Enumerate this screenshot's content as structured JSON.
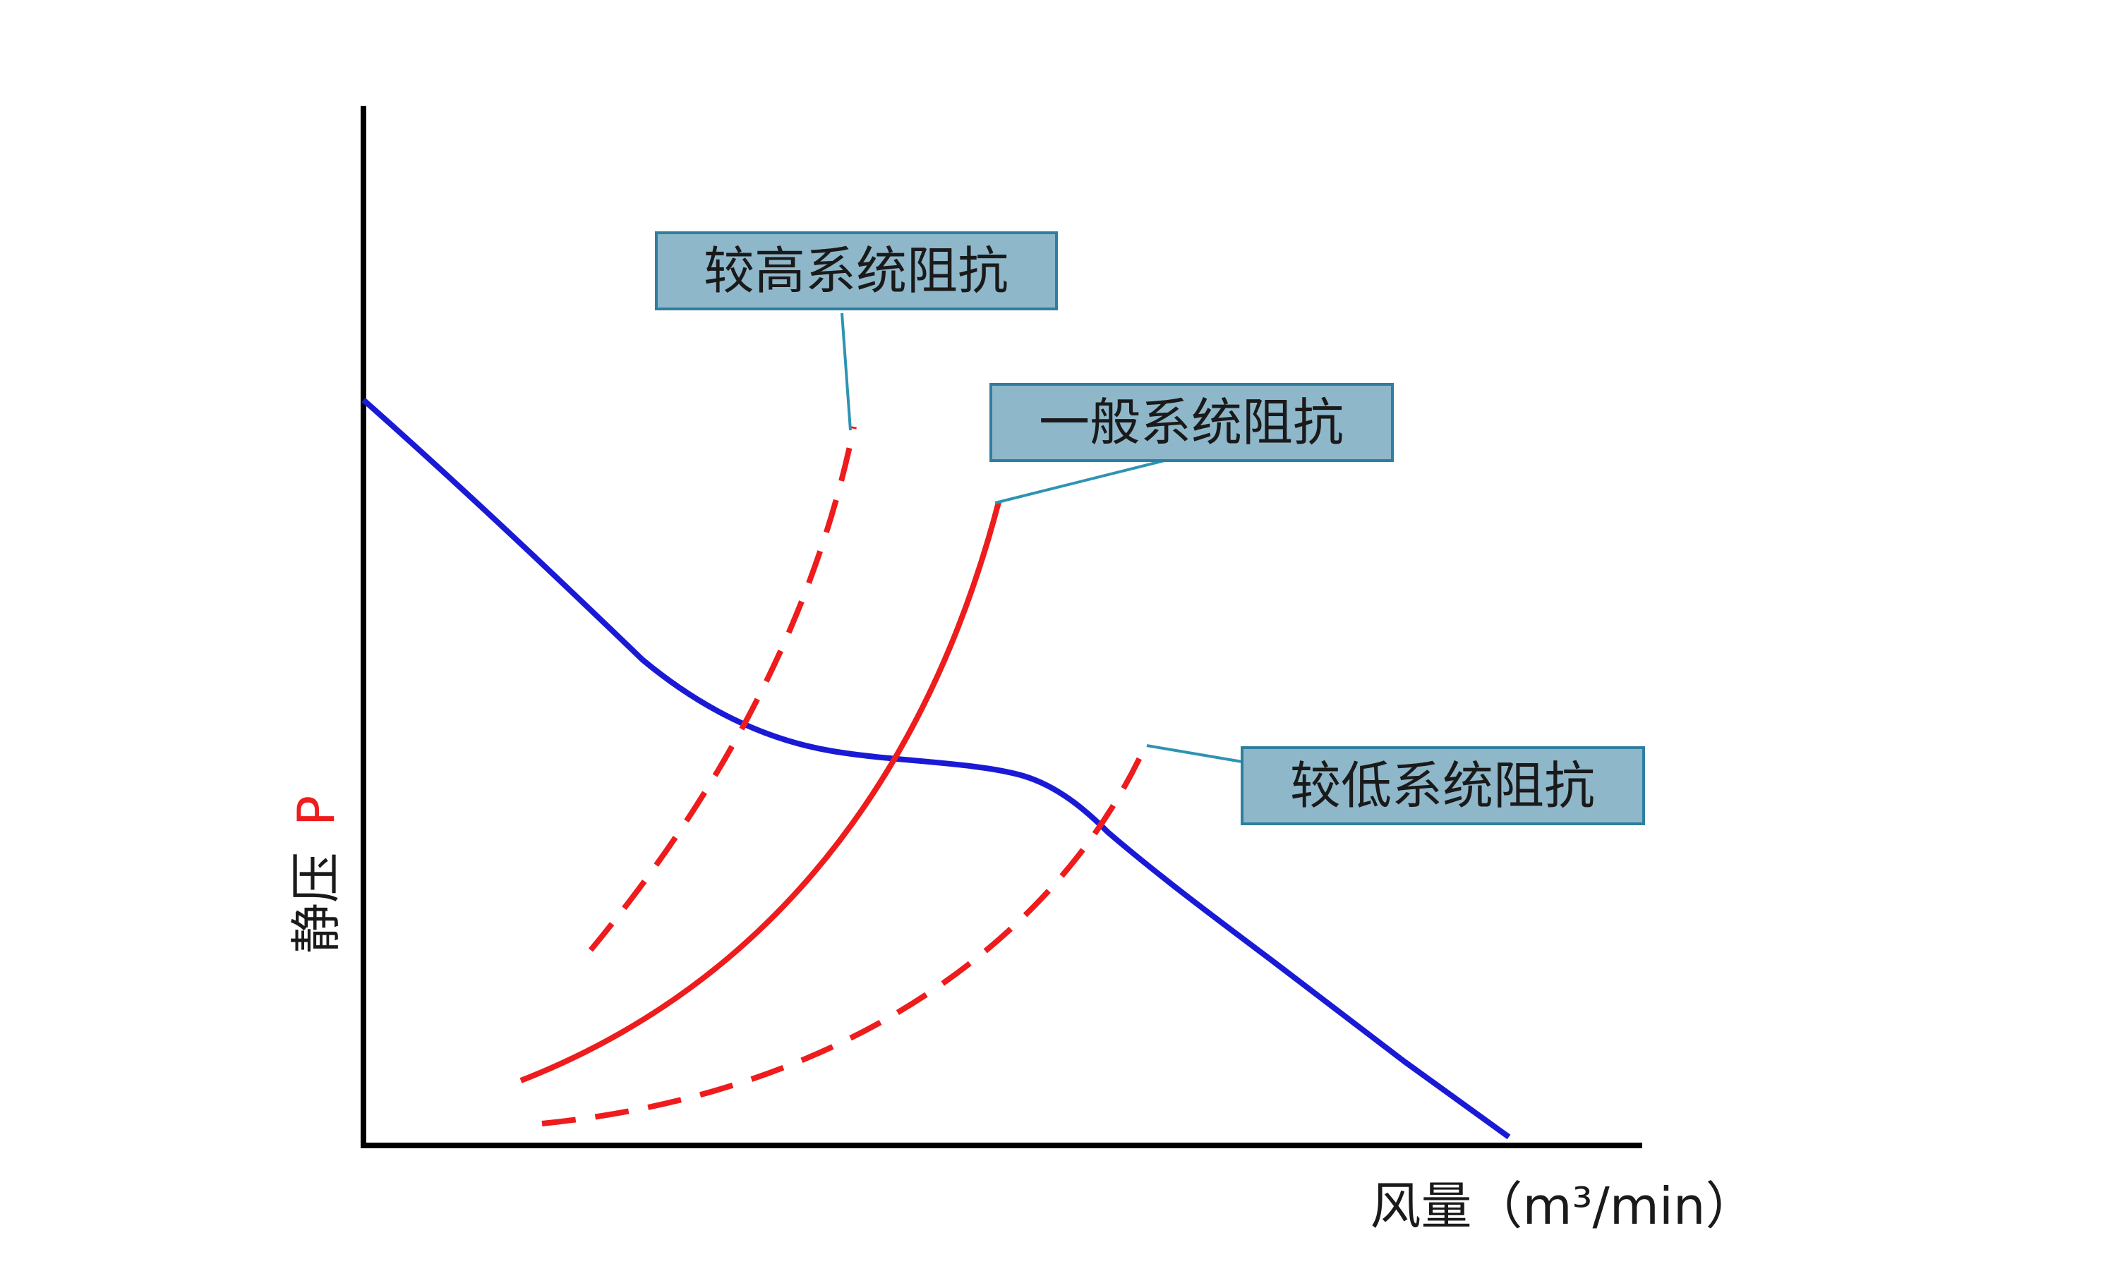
{
  "colors": {
    "axis": "#000000",
    "fan_curve": "#1a1ad6",
    "resistance_curve": "#ee1c1c",
    "label_fill": "#8fb7ca",
    "label_border": "#2e7f9f",
    "leader_line": "#2e93b3",
    "y_label_letter": "#ee1c1c"
  },
  "axes": {
    "x_label": "风量（m³/min）",
    "y_label_cn": "静压",
    "y_label_symbol": "P"
  },
  "labels": {
    "high": "较高系统阻抗",
    "normal": "一般系统阻抗",
    "low": "较低系统阻抗"
  },
  "curves": {
    "fan": {
      "style": "solid",
      "color_key": "fan_curve"
    },
    "high_resistance": {
      "style": "dashed",
      "color_key": "resistance_curve"
    },
    "normal_resistance": {
      "style": "solid",
      "color_key": "resistance_curve"
    },
    "low_resistance": {
      "style": "dashed",
      "color_key": "resistance_curve"
    }
  }
}
